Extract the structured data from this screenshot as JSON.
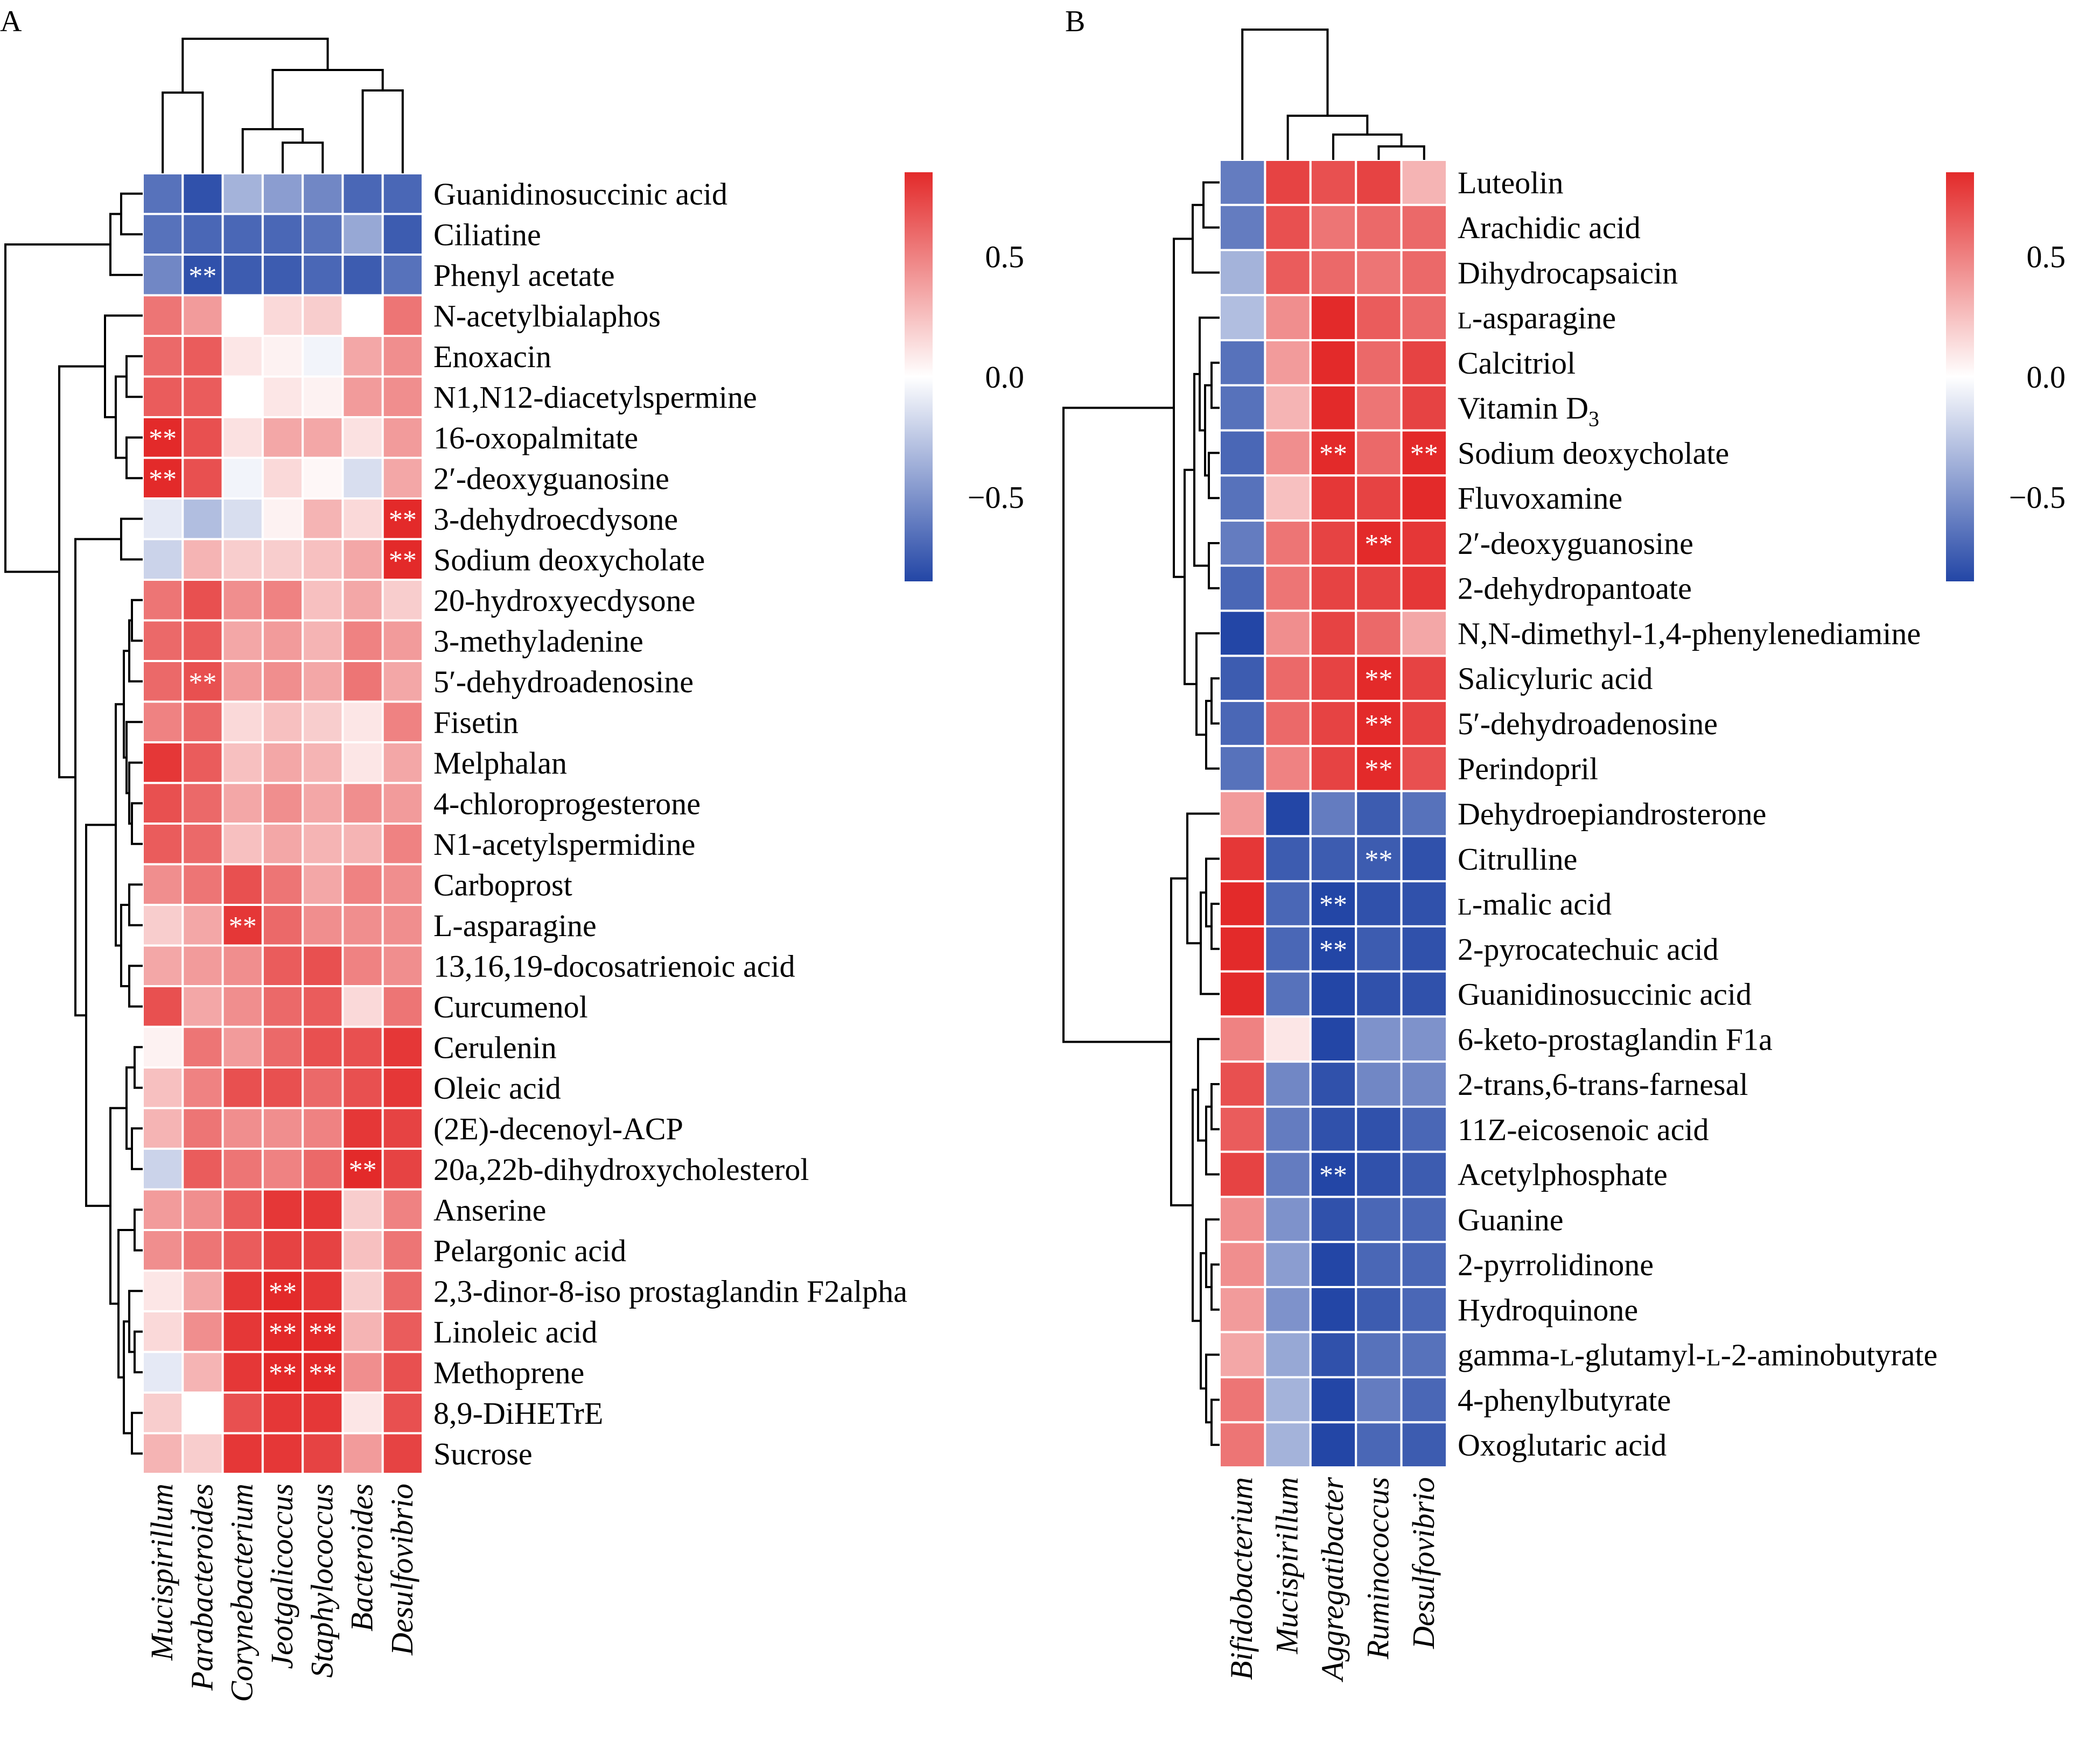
{
  "chart_data": [
    {
      "panel_label": "A",
      "type": "heatmap",
      "columns": [
        "Mucispirillum",
        "Parabacteroides",
        "Corynebacterium",
        "Jeotgalicoccus",
        "Staphylococcus",
        "Bacteroides",
        "Desulfovibrio"
      ],
      "rows": [
        "Guanidinosuccinic acid",
        "Ciliatine",
        "Phenyl acetate",
        "N-acetylbialaphos",
        "Enoxacin",
        "N1,N12-diacetylspermine",
        "16-oxopalmitate",
        "2′-deoxyguanosine",
        "3-dehydroecdysone",
        "Sodium deoxycholate",
        "20-hydroxyecdysone",
        "3-methyladenine",
        "5′-dehydroadenosine",
        "Fisetin",
        "Melphalan",
        "4-chloroprogesterone",
        "N1-acetylspermidine",
        "Carboprost",
        "L-asparagine",
        "13,16,19-docosatrienoic acid",
        "Curcumenol",
        "Cerulenin",
        "Oleic acid",
        "(2E)-decenoyl-ACP",
        "20a,22b-dihydroxycholesterol",
        "Anserine",
        "Pelargonic acid",
        "2,3-dinor-8-iso prostaglandin F2alpha",
        "Linoleic acid",
        "Methoprene",
        "8,9-DiHETrE",
        "Sucrose"
      ],
      "values": [
        [
          -0.65,
          -0.8,
          -0.35,
          -0.45,
          -0.55,
          -0.7,
          -0.7
        ],
        [
          -0.65,
          -0.7,
          -0.7,
          -0.7,
          -0.65,
          -0.4,
          -0.75
        ],
        [
          -0.55,
          -0.8,
          -0.75,
          -0.75,
          -0.7,
          -0.75,
          -0.65
        ],
        [
          0.55,
          0.4,
          0.0,
          0.15,
          0.2,
          0.0,
          0.55
        ],
        [
          0.6,
          0.65,
          0.1,
          0.05,
          -0.05,
          0.35,
          0.45
        ],
        [
          0.65,
          0.65,
          0.0,
          0.1,
          0.05,
          0.4,
          0.45
        ],
        [
          0.85,
          0.7,
          0.12,
          0.35,
          0.35,
          0.12,
          0.4
        ],
        [
          0.85,
          0.7,
          -0.05,
          0.15,
          0.03,
          -0.15,
          0.35
        ],
        [
          -0.1,
          -0.3,
          -0.15,
          0.05,
          0.3,
          0.15,
          0.85
        ],
        [
          -0.2,
          0.3,
          0.2,
          0.2,
          0.25,
          0.35,
          0.85
        ],
        [
          0.55,
          0.7,
          0.45,
          0.5,
          0.25,
          0.35,
          0.2
        ],
        [
          0.6,
          0.65,
          0.35,
          0.4,
          0.3,
          0.5,
          0.4
        ],
        [
          0.6,
          0.7,
          0.4,
          0.45,
          0.35,
          0.55,
          0.35
        ],
        [
          0.5,
          0.6,
          0.15,
          0.25,
          0.2,
          0.1,
          0.5
        ],
        [
          0.8,
          0.65,
          0.25,
          0.35,
          0.3,
          0.1,
          0.35
        ],
        [
          0.7,
          0.6,
          0.35,
          0.45,
          0.35,
          0.45,
          0.4
        ],
        [
          0.65,
          0.6,
          0.25,
          0.35,
          0.3,
          0.3,
          0.5
        ],
        [
          0.45,
          0.55,
          0.7,
          0.55,
          0.35,
          0.5,
          0.45
        ],
        [
          0.2,
          0.35,
          0.8,
          0.6,
          0.45,
          0.45,
          0.45
        ],
        [
          0.35,
          0.4,
          0.45,
          0.65,
          0.7,
          0.5,
          0.45
        ],
        [
          0.7,
          0.35,
          0.45,
          0.6,
          0.65,
          0.15,
          0.55
        ],
        [
          0.05,
          0.55,
          0.4,
          0.6,
          0.7,
          0.7,
          0.8
        ],
        [
          0.25,
          0.5,
          0.7,
          0.7,
          0.6,
          0.7,
          0.8
        ],
        [
          0.3,
          0.55,
          0.45,
          0.45,
          0.5,
          0.8,
          0.75
        ],
        [
          -0.2,
          0.65,
          0.55,
          0.5,
          0.6,
          0.85,
          0.75
        ],
        [
          0.4,
          0.45,
          0.65,
          0.8,
          0.8,
          0.2,
          0.5
        ],
        [
          0.45,
          0.55,
          0.65,
          0.75,
          0.75,
          0.25,
          0.55
        ],
        [
          0.1,
          0.35,
          0.8,
          0.85,
          0.8,
          0.2,
          0.6
        ],
        [
          0.15,
          0.45,
          0.8,
          0.85,
          0.85,
          0.3,
          0.65
        ],
        [
          -0.1,
          0.3,
          0.8,
          0.85,
          0.85,
          0.45,
          0.7
        ],
        [
          0.2,
          0.0,
          0.7,
          0.8,
          0.8,
          0.1,
          0.7
        ],
        [
          0.3,
          0.2,
          0.8,
          0.8,
          0.75,
          0.4,
          0.75
        ]
      ],
      "significance": [
        {
          "row": 2,
          "col": 1,
          "mark": "**"
        },
        {
          "row": 6,
          "col": 0,
          "mark": "**"
        },
        {
          "row": 7,
          "col": 0,
          "mark": "**"
        },
        {
          "row": 8,
          "col": 6,
          "mark": "**"
        },
        {
          "row": 9,
          "col": 6,
          "mark": "**"
        },
        {
          "row": 12,
          "col": 1,
          "mark": "**"
        },
        {
          "row": 18,
          "col": 2,
          "mark": "**"
        },
        {
          "row": 24,
          "col": 5,
          "mark": "**"
        },
        {
          "row": 27,
          "col": 3,
          "mark": "**"
        },
        {
          "row": 28,
          "col": 3,
          "mark": "**"
        },
        {
          "row": 28,
          "col": 4,
          "mark": "**"
        },
        {
          "row": 29,
          "col": 3,
          "mark": "**"
        },
        {
          "row": 29,
          "col": 4,
          "mark": "**"
        }
      ],
      "colorbar": {
        "ticks": [
          0.5,
          0.0,
          -0.5
        ],
        "tick_labels": [
          "0.5",
          "0.0",
          "−0.5"
        ],
        "range": [
          -0.85,
          0.85
        ]
      },
      "colors": {
        "low": "#2346a6",
        "mid": "#ffffff",
        "high": "#e32a2a"
      }
    },
    {
      "panel_label": "B",
      "type": "heatmap",
      "columns": [
        "Bifidobacterium",
        "Mucispirillum",
        "Aggregatibacter",
        "Ruminococcus",
        "Desulfovibrio"
      ],
      "rows": [
        "Luteolin",
        "Arachidic acid",
        "Dihydrocapsaicin",
        "L-asparagine",
        "Calcitriol",
        "Vitamin D3",
        "Sodium deoxycholate",
        "Fluvoxamine",
        "2′-deoxyguanosine",
        "2-dehydropantoate",
        "N,N-dimethyl-1,4-phenylenediamine",
        "Salicyluric acid",
        "5′-dehydroadenosine",
        "Perindopril",
        "Dehydroepiandrosterone",
        "Citrulline",
        "L-malic acid",
        "2-pyrocatechuic acid",
        "Guanidinosuccinic acid",
        "6-keto-prostaglandin F1a",
        "2-trans,6-trans-farnesal",
        "11Z-eicosenoic acid",
        "Acetylphosphate",
        "Guanine",
        "2-pyrrolidinone",
        "Hydroquinone",
        "gamma-L-glutamyl-L-2-aminobutyrate",
        "4-phenylbutyrate",
        "Oxoglutaric acid"
      ],
      "row_label_parts": [
        [
          {
            "t": "Luteolin",
            "sc": false
          }
        ],
        [
          {
            "t": "Arachidic acid",
            "sc": false
          }
        ],
        [
          {
            "t": "Dihydrocapsaicin",
            "sc": false
          }
        ],
        [
          {
            "t": "L",
            "sc": true
          },
          {
            "t": "-asparagine",
            "sc": false
          }
        ],
        [
          {
            "t": "Calcitriol",
            "sc": false
          }
        ],
        [
          {
            "t": "Vitamin D",
            "sc": false
          },
          {
            "t": "3",
            "sub": true
          }
        ],
        [
          {
            "t": "Sodium deoxycholate",
            "sc": false
          }
        ],
        [
          {
            "t": "Fluvoxamine",
            "sc": false
          }
        ],
        [
          {
            "t": "2′-deoxyguanosine",
            "sc": false
          }
        ],
        [
          {
            "t": "2-dehydropantoate",
            "sc": false
          }
        ],
        [
          {
            "t": "N,N-dimethyl-1,4-phenylenediamine",
            "sc": false
          }
        ],
        [
          {
            "t": "Salicyluric acid",
            "sc": false
          }
        ],
        [
          {
            "t": "5′-dehydroadenosine",
            "sc": false
          }
        ],
        [
          {
            "t": "Perindopril",
            "sc": false
          }
        ],
        [
          {
            "t": "Dehydroepiandrosterone",
            "sc": false
          }
        ],
        [
          {
            "t": "Citrulline",
            "sc": false
          }
        ],
        [
          {
            "t": "L",
            "sc": true
          },
          {
            "t": "-malic acid",
            "sc": false
          }
        ],
        [
          {
            "t": "2-pyrocatechuic acid",
            "sc": false
          }
        ],
        [
          {
            "t": "Guanidinosuccinic acid",
            "sc": false
          }
        ],
        [
          {
            "t": "6-keto-prostaglandin F1a",
            "sc": false
          }
        ],
        [
          {
            "t": "2-trans,6-trans-farnesal",
            "sc": false
          }
        ],
        [
          {
            "t": "11Z-eicosenoic acid",
            "sc": false
          }
        ],
        [
          {
            "t": "Acetylphosphate",
            "sc": false
          }
        ],
        [
          {
            "t": "Guanine",
            "sc": false
          }
        ],
        [
          {
            "t": "2-pyrrolidinone",
            "sc": false
          }
        ],
        [
          {
            "t": "Hydroquinone",
            "sc": false
          }
        ],
        [
          {
            "t": "gamma-",
            "sc": false
          },
          {
            "t": "L",
            "sc": true
          },
          {
            "t": "-glutamyl-",
            "sc": false
          },
          {
            "t": "L",
            "sc": true
          },
          {
            "t": "-2-aminobutyrate",
            "sc": false
          }
        ],
        [
          {
            "t": "4-phenylbutyrate",
            "sc": false
          }
        ],
        [
          {
            "t": "Oxoglutaric acid",
            "sc": false
          }
        ]
      ],
      "values": [
        [
          -0.6,
          0.75,
          0.7,
          0.75,
          0.3
        ],
        [
          -0.6,
          0.7,
          0.55,
          0.6,
          0.6
        ],
        [
          -0.35,
          0.65,
          0.6,
          0.55,
          0.6
        ],
        [
          -0.3,
          0.45,
          0.85,
          0.65,
          0.6
        ],
        [
          -0.65,
          0.4,
          0.85,
          0.6,
          0.75
        ],
        [
          -0.65,
          0.3,
          0.85,
          0.55,
          0.75
        ],
        [
          -0.7,
          0.45,
          0.85,
          0.6,
          0.85
        ],
        [
          -0.65,
          0.25,
          0.8,
          0.75,
          0.85
        ],
        [
          -0.6,
          0.55,
          0.75,
          0.85,
          0.8
        ],
        [
          -0.7,
          0.55,
          0.75,
          0.75,
          0.8
        ],
        [
          -0.85,
          0.45,
          0.75,
          0.6,
          0.35
        ],
        [
          -0.75,
          0.6,
          0.75,
          0.85,
          0.75
        ],
        [
          -0.7,
          0.6,
          0.75,
          0.85,
          0.75
        ],
        [
          -0.65,
          0.5,
          0.75,
          0.85,
          0.7
        ],
        [
          0.4,
          -0.85,
          -0.6,
          -0.75,
          -0.65
        ],
        [
          0.8,
          -0.75,
          -0.75,
          -0.75,
          -0.8
        ],
        [
          0.85,
          -0.7,
          -0.85,
          -0.8,
          -0.8
        ],
        [
          0.85,
          -0.7,
          -0.85,
          -0.75,
          -0.8
        ],
        [
          0.85,
          -0.65,
          -0.85,
          -0.8,
          -0.8
        ],
        [
          0.5,
          0.1,
          -0.85,
          -0.5,
          -0.5
        ],
        [
          0.7,
          -0.55,
          -0.8,
          -0.55,
          -0.55
        ],
        [
          0.65,
          -0.6,
          -0.8,
          -0.8,
          -0.7
        ],
        [
          0.75,
          -0.6,
          -0.85,
          -0.8,
          -0.75
        ],
        [
          0.45,
          -0.5,
          -0.8,
          -0.7,
          -0.7
        ],
        [
          0.45,
          -0.45,
          -0.85,
          -0.7,
          -0.7
        ],
        [
          0.4,
          -0.5,
          -0.85,
          -0.75,
          -0.7
        ],
        [
          0.35,
          -0.4,
          -0.8,
          -0.65,
          -0.65
        ],
        [
          0.55,
          -0.35,
          -0.85,
          -0.6,
          -0.7
        ],
        [
          0.55,
          -0.35,
          -0.85,
          -0.7,
          -0.75
        ]
      ],
      "significance": [
        {
          "row": 6,
          "col": 2,
          "mark": "**"
        },
        {
          "row": 6,
          "col": 4,
          "mark": "**"
        },
        {
          "row": 8,
          "col": 3,
          "mark": "**"
        },
        {
          "row": 11,
          "col": 3,
          "mark": "**"
        },
        {
          "row": 12,
          "col": 3,
          "mark": "**"
        },
        {
          "row": 13,
          "col": 3,
          "mark": "**"
        },
        {
          "row": 15,
          "col": 3,
          "mark": "**"
        },
        {
          "row": 16,
          "col": 2,
          "mark": "**"
        },
        {
          "row": 17,
          "col": 2,
          "mark": "**"
        },
        {
          "row": 22,
          "col": 2,
          "mark": "**"
        }
      ],
      "colorbar": {
        "ticks": [
          0.5,
          0.0,
          -0.5
        ],
        "tick_labels": [
          "0.5",
          "0.0",
          "−0.5"
        ],
        "range": [
          -0.85,
          0.85
        ]
      },
      "colors": {
        "low": "#2346a6",
        "mid": "#ffffff",
        "high": "#e32a2a"
      }
    }
  ]
}
